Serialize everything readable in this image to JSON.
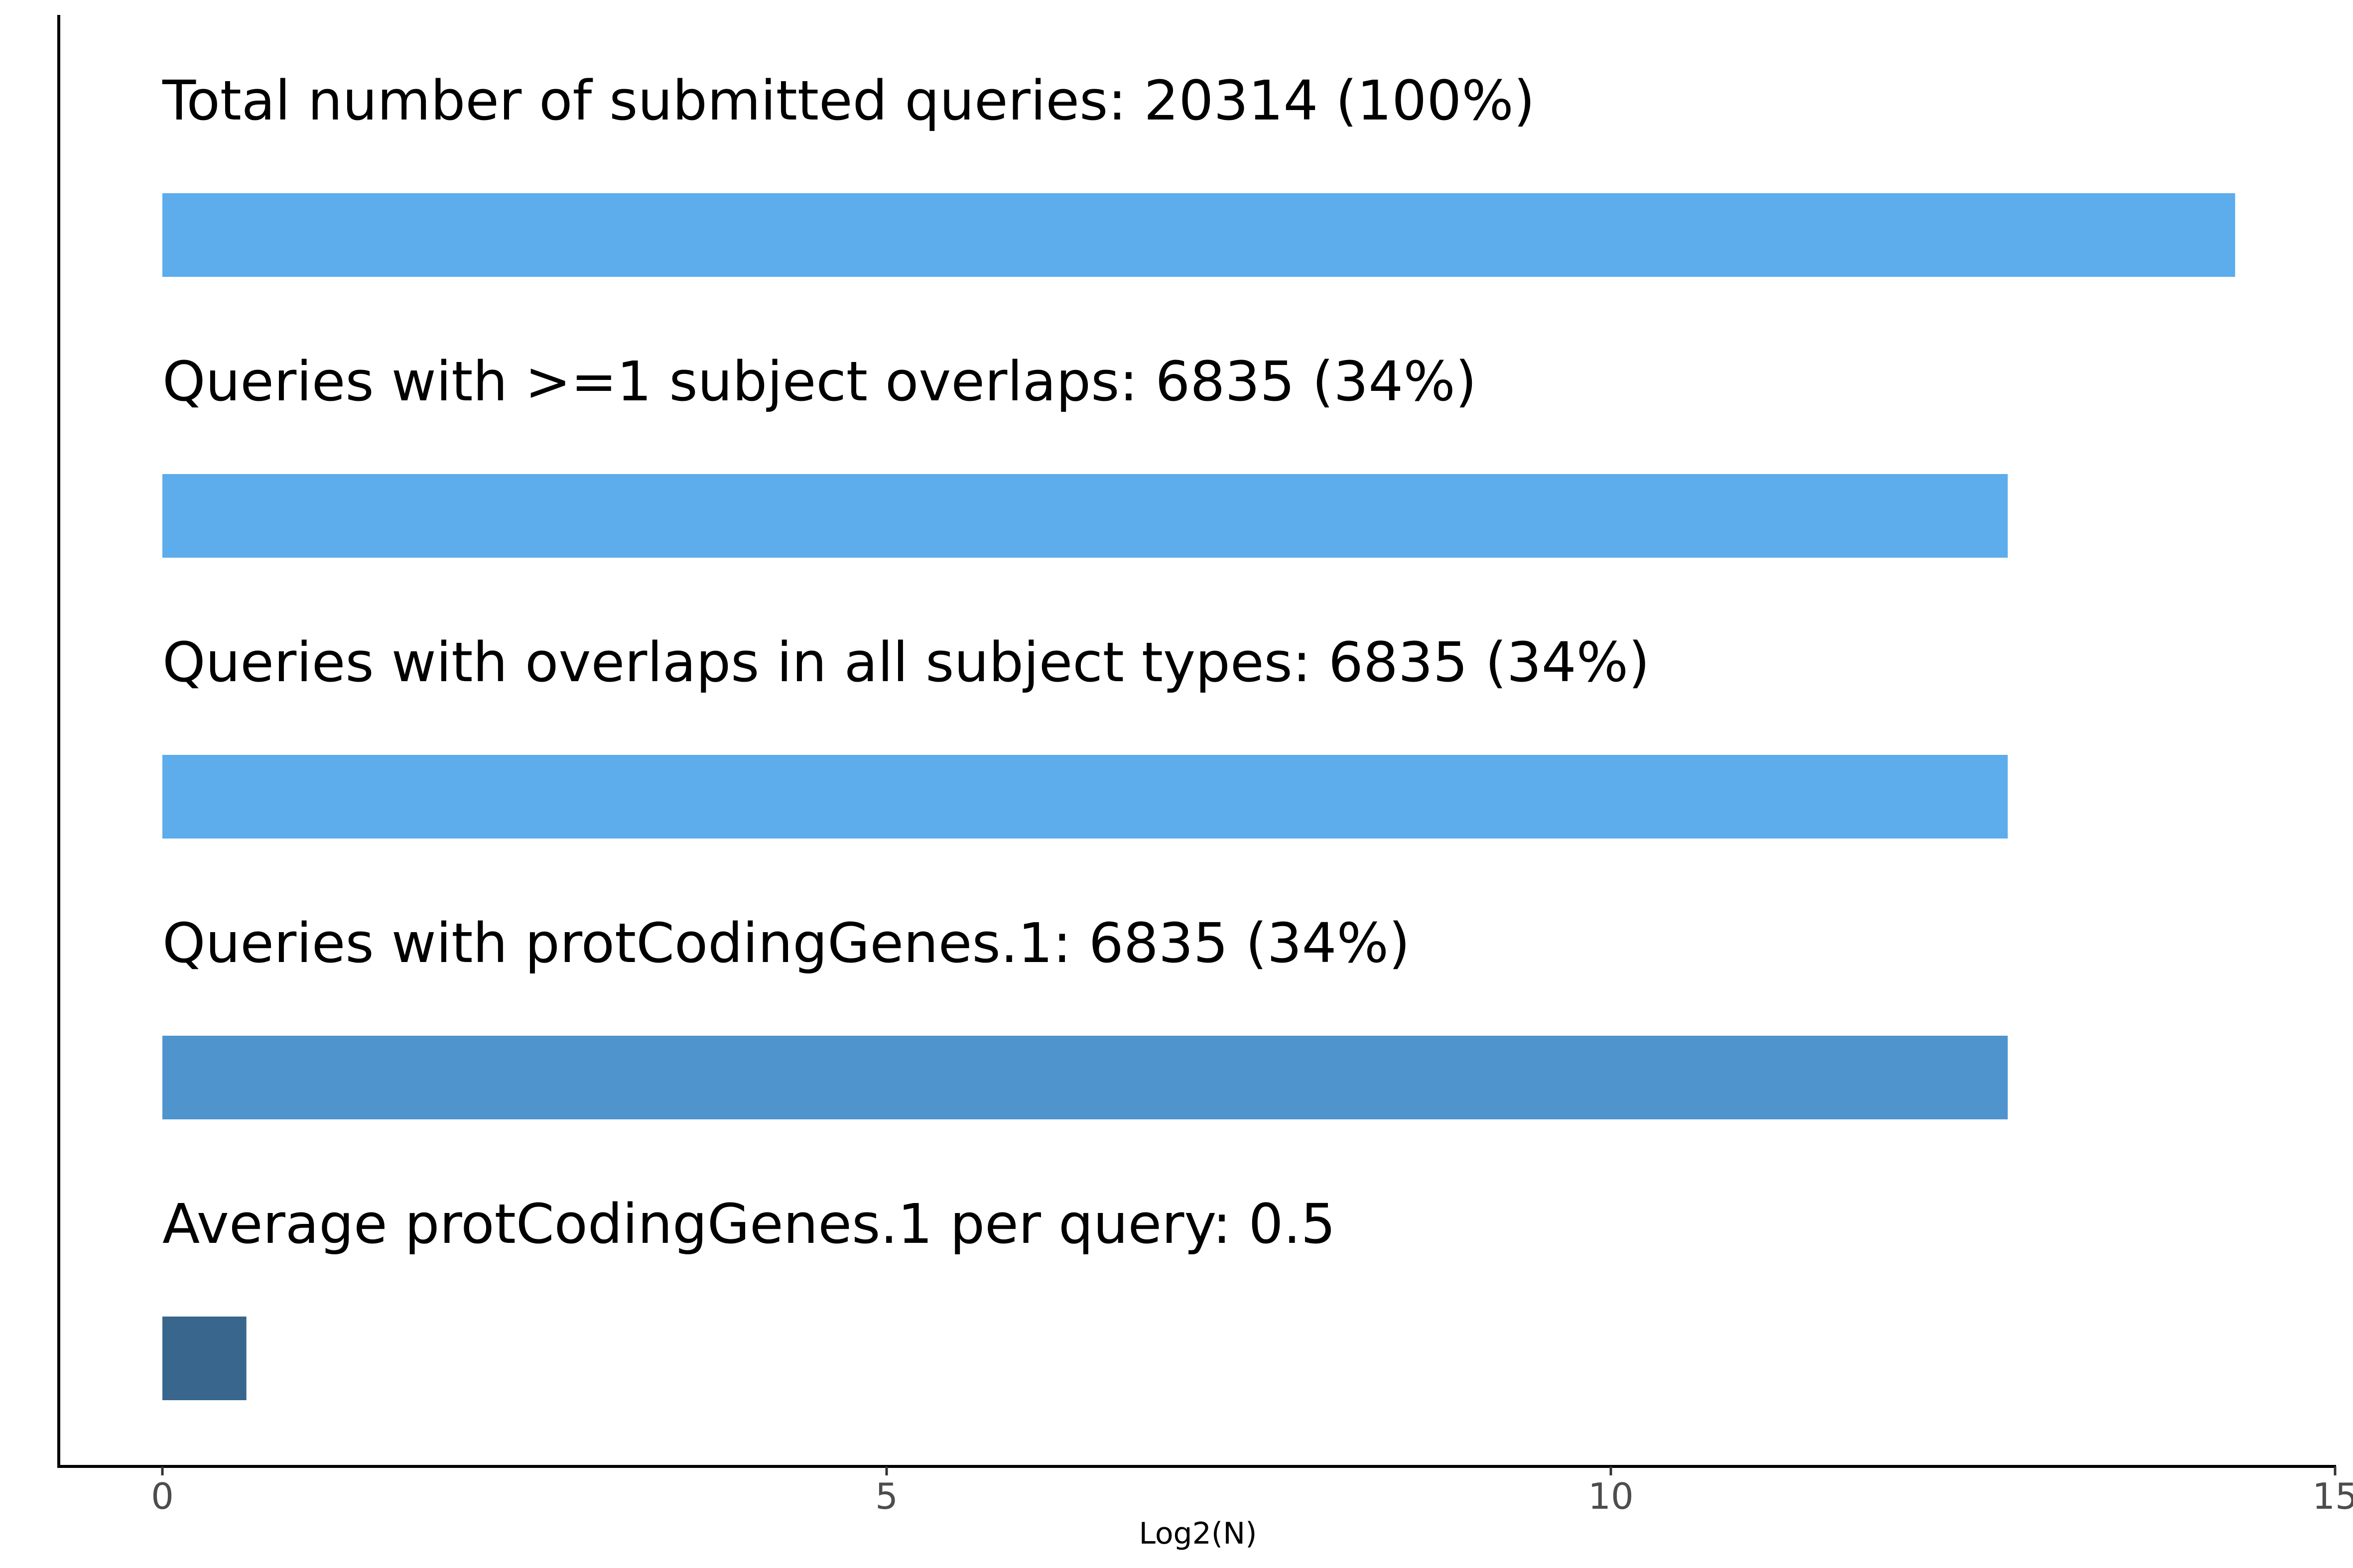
{
  "chart_data": {
    "type": "bar",
    "orientation": "horizontal",
    "xlabel": "Log2(N)",
    "ylabel": "",
    "xlim": [
      0,
      15
    ],
    "x_ticks": [
      0,
      5,
      10,
      15
    ],
    "grid": false,
    "legend": "none",
    "bars": [
      {
        "label": "Total number of submitted queries: 20314 (100%)",
        "value": 14.31,
        "color": "#5DACEB"
      },
      {
        "label": "Queries with >=1 subject overlaps: 6835 (34%)",
        "value": 12.74,
        "color": "#5DACEB"
      },
      {
        "label": "Queries with overlaps in all subject types: 6835 (34%)",
        "value": 12.74,
        "color": "#5DACEB"
      },
      {
        "label": "Queries with protCodingGenes.1: 6835 (34%)",
        "value": 12.74,
        "color": "#5094CD"
      },
      {
        "label": "Average protCodingGenes.1 per query: 0.5",
        "value": 0.58,
        "color": "#38668C"
      }
    ]
  }
}
